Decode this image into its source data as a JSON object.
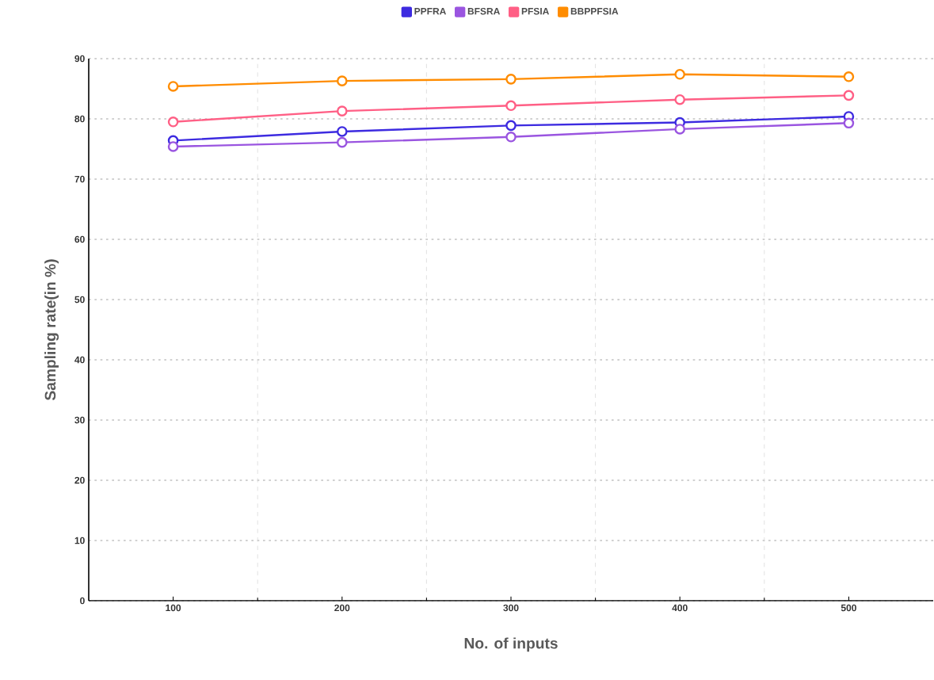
{
  "chart_data": {
    "type": "line",
    "xlabel": "No. of inputs",
    "ylabel": "Sampling rate(in %)",
    "categories": [
      "100",
      "200",
      "300",
      "400",
      "500"
    ],
    "series": [
      {
        "name": "PPFRA",
        "color": "#3d2be0",
        "values": [
          76.4,
          77.9,
          78.9,
          79.4,
          80.4
        ]
      },
      {
        "name": "BFSRA",
        "color": "#9a55e0",
        "values": [
          75.4,
          76.1,
          77.0,
          78.3,
          79.3
        ]
      },
      {
        "name": "PFSIA",
        "color": "#ff5f85",
        "values": [
          79.5,
          81.3,
          82.2,
          83.2,
          83.9
        ]
      },
      {
        "name": "BBPPFSIA",
        "color": "#ff8c00",
        "values": [
          85.4,
          86.3,
          86.6,
          87.4,
          87.0
        ]
      }
    ],
    "ylim": [
      0,
      90
    ],
    "yticks": [
      0,
      10,
      20,
      30,
      40,
      50,
      60,
      70,
      80,
      90
    ],
    "grid": true,
    "legend": "top",
    "marker": "circle",
    "line_style": "solid"
  }
}
